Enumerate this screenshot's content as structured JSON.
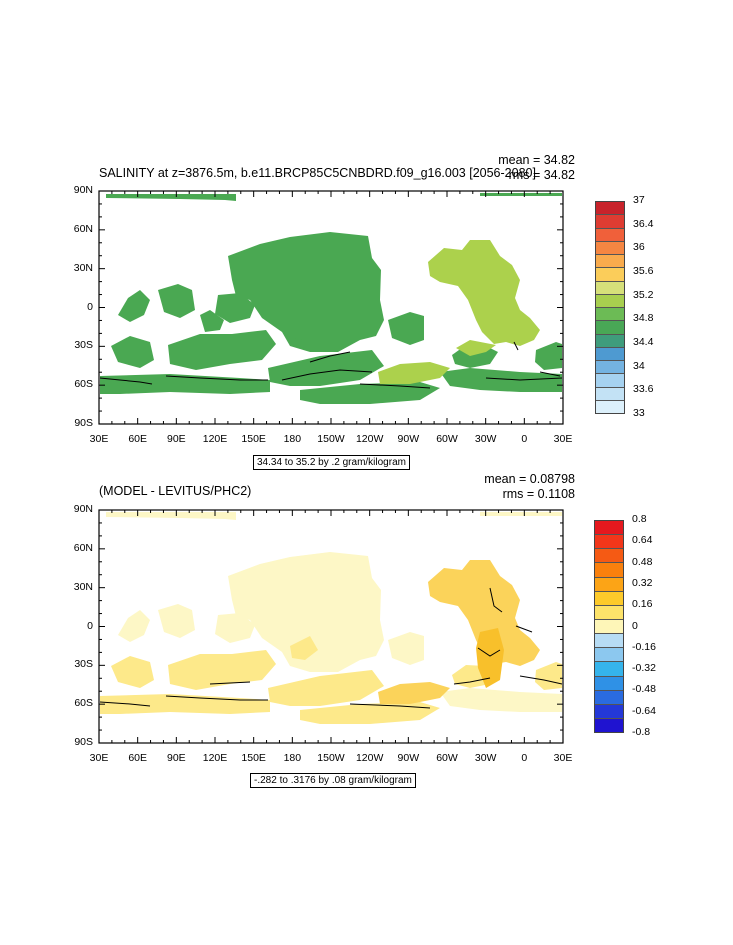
{
  "panel_top": {
    "title": "SALINITY at z=3876.5m, b.e11.BRCP85C5CNBDRD.f09_g16.003 [2056-2080]",
    "mean": "mean = 34.82",
    "rms": "rms = 34.82",
    "contour_info": "34.34 to 35.2 by .2 gram/kilogram",
    "lat_labels": [
      "90N",
      "60N",
      "30N",
      "0",
      "30S",
      "60S",
      "90S"
    ],
    "lon_labels": [
      "30E",
      "60E",
      "90E",
      "120E",
      "150E",
      "180",
      "150W",
      "120W",
      "90W",
      "60W",
      "30W",
      "0",
      "30E"
    ],
    "colorbar_labels": [
      "37",
      "36.4",
      "36",
      "35.6",
      "35.2",
      "34.8",
      "34.4",
      "34",
      "33.6",
      "33"
    ],
    "colorbar_colors": [
      "#c8232b",
      "#de3c32",
      "#f0603a",
      "#f58642",
      "#f9ab4d",
      "#fbcd5a",
      "#d6e07a",
      "#a8cf4f",
      "#6cbb55",
      "#49a756",
      "#3f9c7c",
      "#4e9ad1",
      "#74b3e1",
      "#a6d2f0",
      "#c3e2f5",
      "#dcf0fb"
    ],
    "land_color": "#4aa852",
    "atlantic_color": "#acd14c"
  },
  "panel_bottom": {
    "title": "(MODEL - LEVITUS/PHC2)",
    "mean": "mean = 0.08798",
    "rms": "rms = 0.1108",
    "contour_info": "-.282 to .3176 by .08 gram/kilogram",
    "lat_labels": [
      "90N",
      "60N",
      "30N",
      "0",
      "30S",
      "60S",
      "90S"
    ],
    "lon_labels": [
      "30E",
      "60E",
      "90E",
      "120E",
      "150E",
      "180",
      "150W",
      "120W",
      "90W",
      "60W",
      "30W",
      "0",
      "30E"
    ],
    "colorbar_labels": [
      "0.8",
      "0.64",
      "0.48",
      "0.32",
      "0.16",
      "0",
      "-0.16",
      "-0.32",
      "-0.48",
      "-0.64",
      "-0.8"
    ],
    "colorbar_colors": [
      "#e5181e",
      "#f2361a",
      "#f55a14",
      "#f9800d",
      "#fca416",
      "#fdca2a",
      "#fde36a",
      "#fef6b8",
      "#b7dcf4",
      "#8cc8ef",
      "#35b4eb",
      "#2f91e6",
      "#2a6be0",
      "#2438d8",
      "#1f13d0"
    ],
    "pale_color": "#fdf7c6",
    "light_color": "#fde98a",
    "mid_color": "#fbd35a",
    "strong_color": "#f8c02b"
  }
}
